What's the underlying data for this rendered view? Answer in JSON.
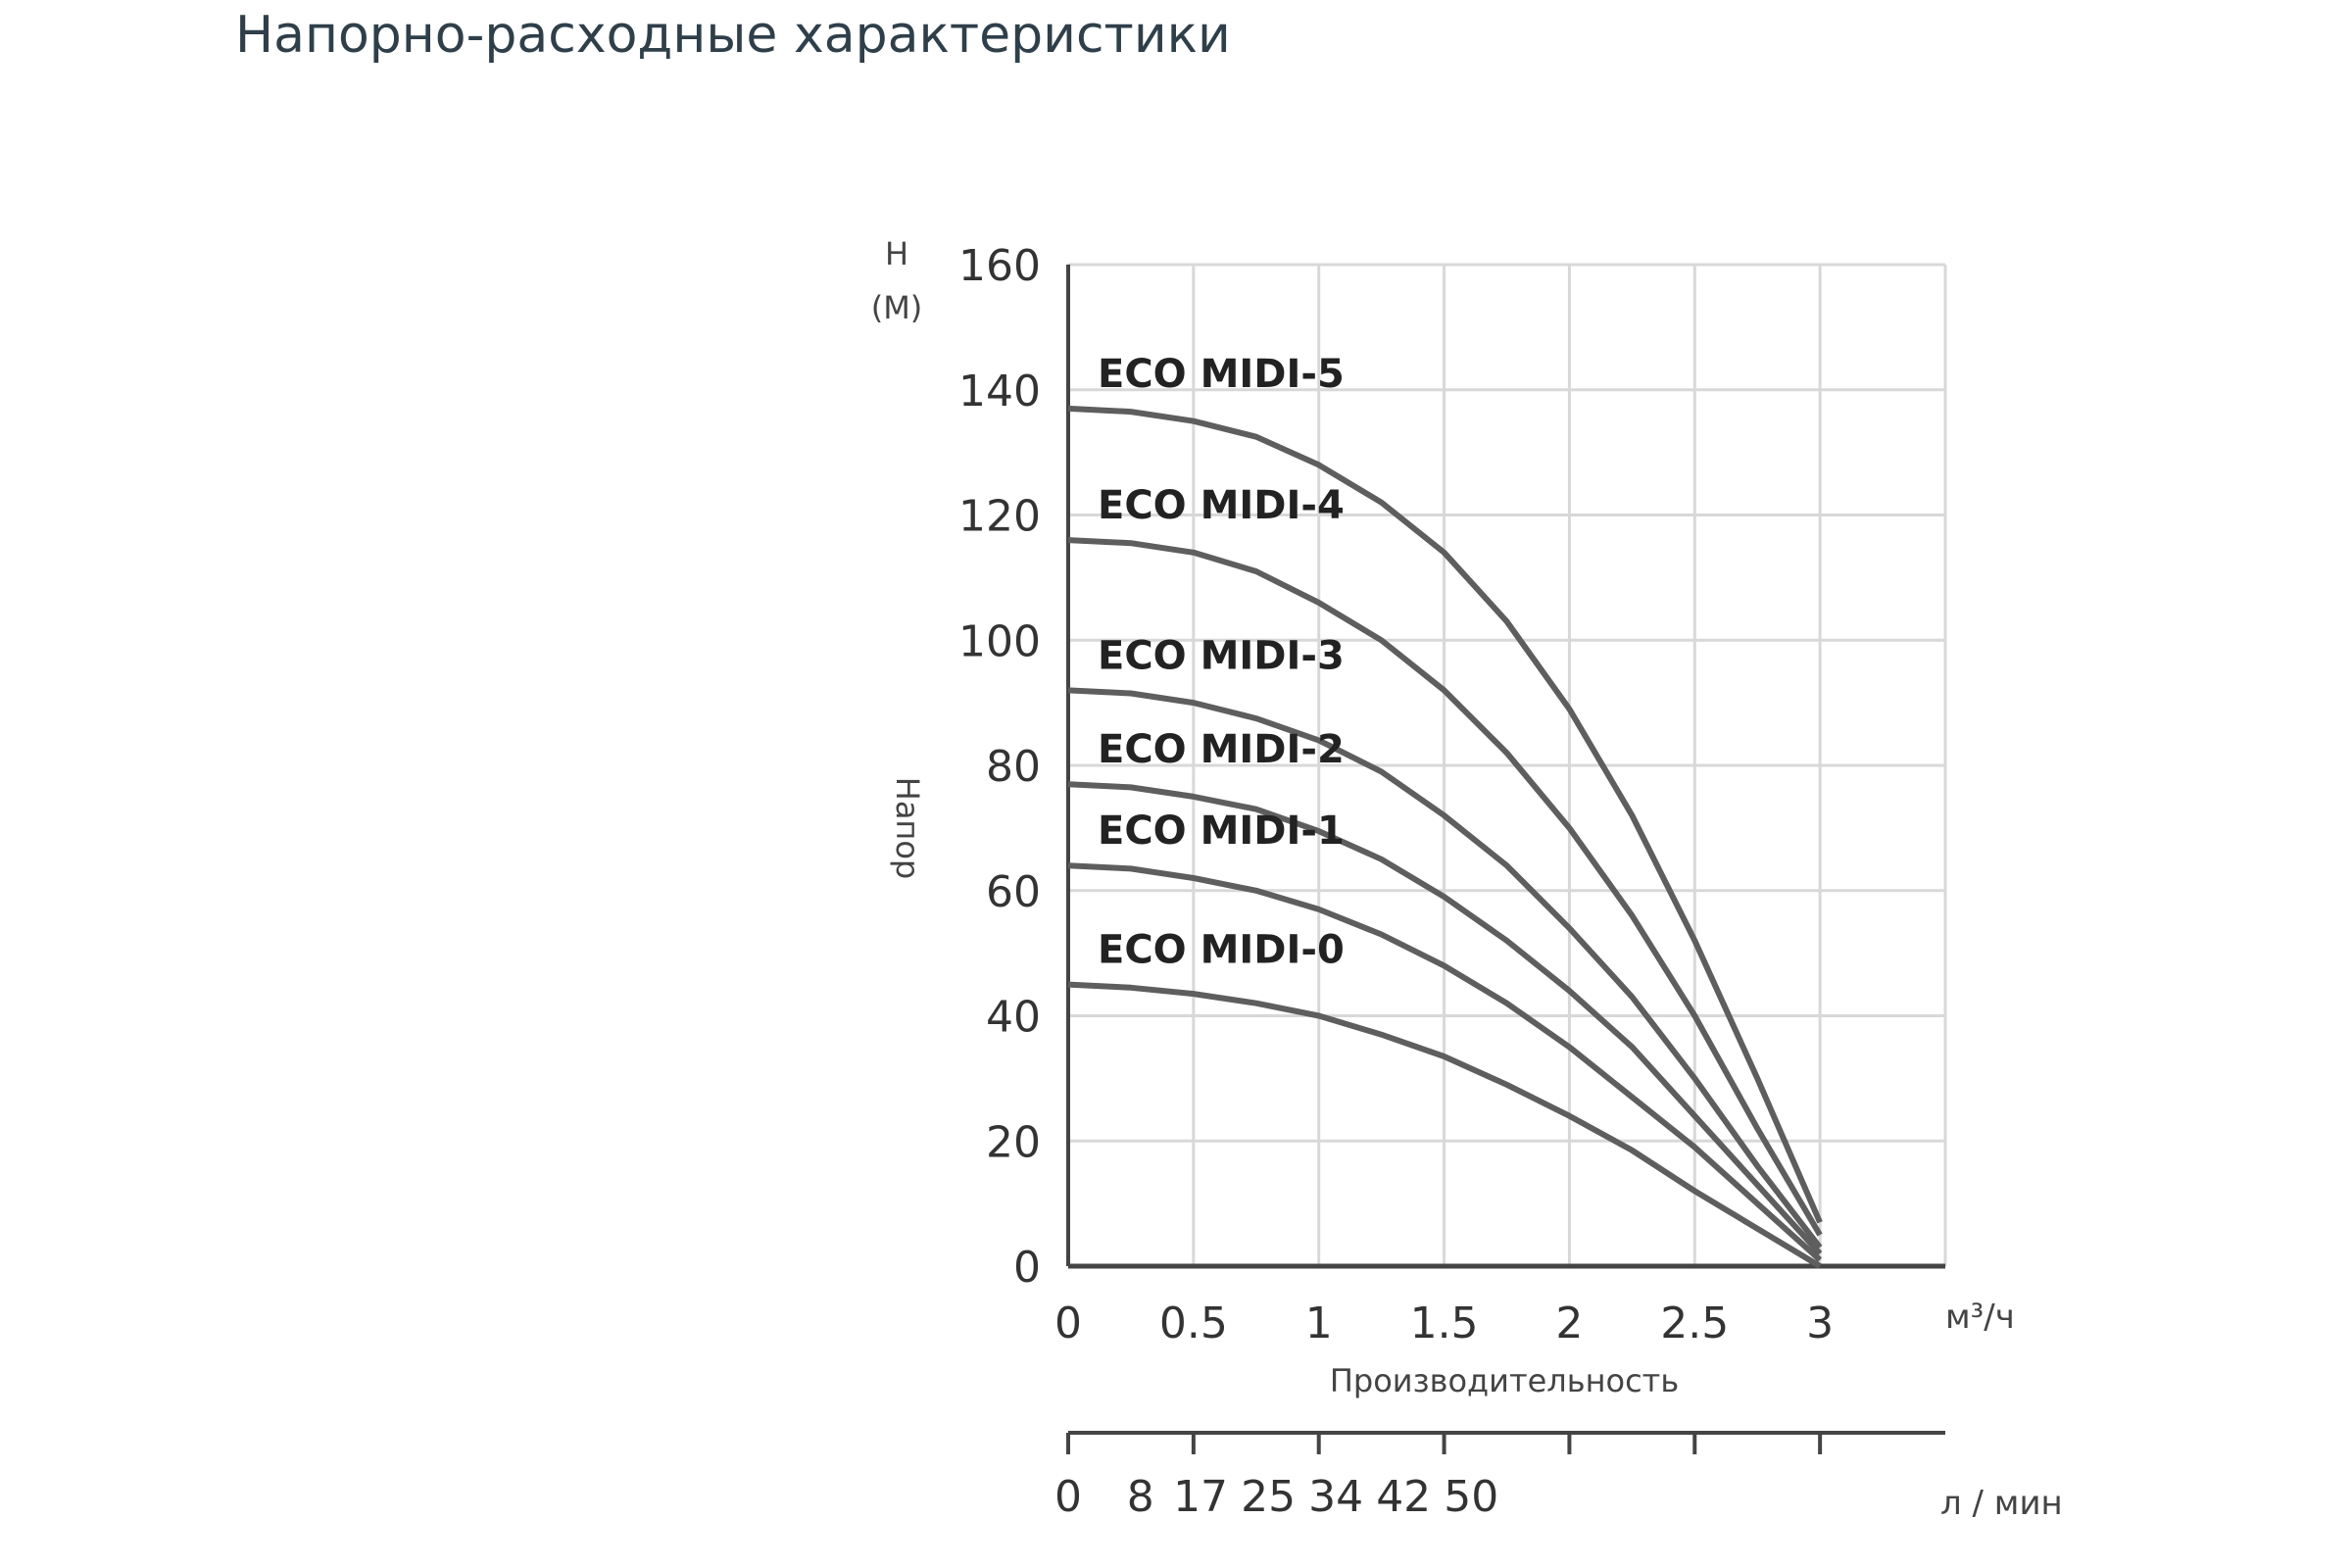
{
  "page": {
    "title": "Напорно-расходные характеристики"
  },
  "chart_data": {
    "type": "line",
    "xlabel": "Производительность",
    "ylabel": "Напор",
    "y_unit_top": "Н",
    "y_unit_bottom": "(М)",
    "x_unit": "м³/ч",
    "secondary_x_unit": "л / мин",
    "xlim": [
      0,
      3.5
    ],
    "ylim": [
      0,
      160
    ],
    "x_ticks": [
      "0",
      "0.5",
      "1",
      "1.5",
      "2",
      "2.5",
      "3"
    ],
    "y_ticks": [
      "0",
      "20",
      "40",
      "60",
      "80",
      "100",
      "120",
      "140",
      "160"
    ],
    "secondary_x_ticks": [
      "0",
      "8",
      "17",
      "25",
      "34",
      "42",
      "50"
    ],
    "grid": true,
    "x": [
      0,
      0.25,
      0.5,
      0.75,
      1,
      1.25,
      1.5,
      1.75,
      2,
      2.25,
      2.5,
      2.75,
      3
    ],
    "series": [
      {
        "name": "ECO MIDI-5",
        "values": [
          137,
          136.5,
          135,
          132.5,
          128,
          122,
          114,
          103,
          89,
          72,
          52,
          30,
          7
        ]
      },
      {
        "name": "ECO MIDI-4",
        "values": [
          116,
          115.5,
          114,
          111,
          106,
          100,
          92,
          82,
          70,
          56,
          40,
          22,
          5
        ]
      },
      {
        "name": "ECO MIDI-3",
        "values": [
          92,
          91.5,
          90,
          87.5,
          84,
          79,
          72,
          64,
          54,
          43,
          30,
          16,
          3
        ]
      },
      {
        "name": "ECO MIDI-2",
        "values": [
          77,
          76.5,
          75,
          73,
          69.5,
          65,
          59,
          52,
          44,
          35,
          24,
          13,
          2
        ]
      },
      {
        "name": "ECO MIDI-1",
        "values": [
          64,
          63.5,
          62,
          60,
          57,
          53,
          48,
          42,
          35,
          27,
          19,
          10,
          1
        ]
      },
      {
        "name": "ECO MIDI-0",
        "values": [
          45,
          44.5,
          43.5,
          42,
          40,
          37,
          33.5,
          29,
          24,
          18.5,
          12,
          6,
          0
        ]
      }
    ],
    "colors": {
      "curve": "#5e5e5e",
      "grid": "#d8d8d8",
      "axis": "#444444"
    }
  }
}
